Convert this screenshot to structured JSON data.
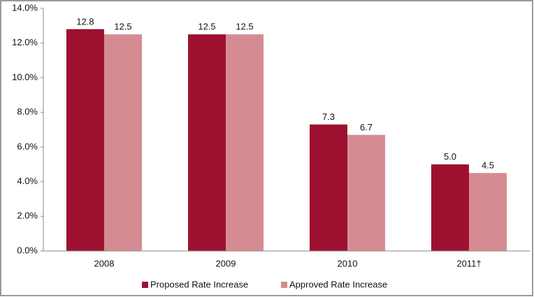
{
  "chart_data": {
    "type": "bar",
    "categories": [
      "2008",
      "2009",
      "2010",
      "2011†"
    ],
    "series": [
      {
        "name": "Proposed Rate Increase",
        "color": "#9e1030",
        "values": [
          12.8,
          12.5,
          7.3,
          5.0
        ],
        "value_labels": [
          "12.8",
          "12.5",
          "7.3",
          "5.0"
        ]
      },
      {
        "name": "Approved Rate Increase",
        "color": "#d48c92",
        "values": [
          12.5,
          12.5,
          6.7,
          4.5
        ],
        "value_labels": [
          "12.5",
          "12.5",
          "6.7",
          "4.5"
        ]
      }
    ],
    "ylim": [
      0,
      14
    ],
    "yticks": [
      {
        "value": 0,
        "label": "0.0%"
      },
      {
        "value": 2,
        "label": "2.0%"
      },
      {
        "value": 4,
        "label": "4.0%"
      },
      {
        "value": 6,
        "label": "6.0%"
      },
      {
        "value": 8,
        "label": "8.0%"
      },
      {
        "value": 10,
        "label": "10.0%"
      },
      {
        "value": 12,
        "label": "12.0%"
      },
      {
        "value": 14,
        "label": "14.0%"
      }
    ],
    "grid": false,
    "legend": "bottom"
  }
}
